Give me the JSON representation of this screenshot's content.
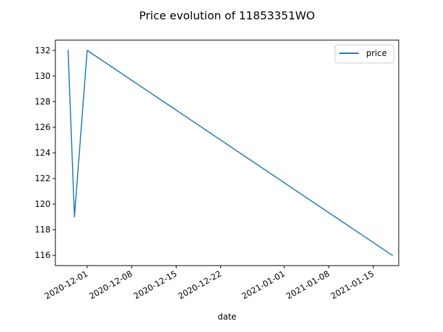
{
  "chart_data": {
    "type": "line",
    "title": "Price evolution of 11853351WO",
    "xlabel": "date",
    "ylabel": "",
    "x_is_date": true,
    "x": [
      "2020-11-28",
      "2020-11-29",
      "2020-12-01",
      "2021-01-18"
    ],
    "series": [
      {
        "name": "price",
        "color": "#1f77b4",
        "values": [
          132,
          119,
          132,
          116
        ]
      }
    ],
    "xlim": [
      "2020-11-26",
      "2021-01-19"
    ],
    "ylim": [
      115.2,
      132.8
    ],
    "x_ticks": [
      "2020-12-01",
      "2020-12-08",
      "2020-12-15",
      "2020-12-22",
      "2021-01-01",
      "2021-01-08",
      "2021-01-15"
    ],
    "y_ticks": [
      116,
      118,
      120,
      122,
      124,
      126,
      128,
      130,
      132
    ],
    "legend_position": "top-right",
    "grid": false
  }
}
